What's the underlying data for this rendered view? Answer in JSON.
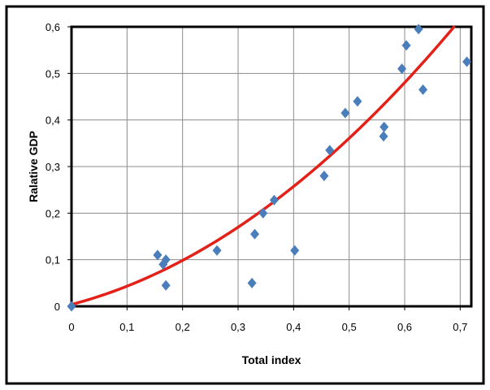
{
  "chart_data": {
    "type": "scatter",
    "xlabel": "Total index",
    "ylabel": "Ralative GDP",
    "xlim": [
      0,
      0.72
    ],
    "ylim": [
      0,
      0.6
    ],
    "x_ticks": [
      0,
      0.1,
      0.2,
      0.3,
      0.4,
      0.5,
      0.6,
      0.7
    ],
    "y_ticks": [
      0,
      0.1,
      0.2,
      0.3,
      0.4,
      0.5,
      0.6
    ],
    "x_tick_labels": [
      "0",
      "0,1",
      "0,2",
      "0,3",
      "0,4",
      "0,5",
      "0,6",
      "0,7"
    ],
    "y_tick_labels": [
      "0",
      "0,1",
      "0,2",
      "0,3",
      "0,4",
      "0,5",
      "0,6"
    ],
    "grid": true,
    "series": [
      {
        "marker": "diamond",
        "color": "#4a7ebb",
        "points": [
          [
            0.0,
            0.0
          ],
          [
            0.155,
            0.11
          ],
          [
            0.165,
            0.09
          ],
          [
            0.17,
            0.1
          ],
          [
            0.17,
            0.045
          ],
          [
            0.262,
            0.12
          ],
          [
            0.325,
            0.05
          ],
          [
            0.33,
            0.155
          ],
          [
            0.345,
            0.2
          ],
          [
            0.365,
            0.228
          ],
          [
            0.402,
            0.12
          ],
          [
            0.455,
            0.28
          ],
          [
            0.465,
            0.335
          ],
          [
            0.493,
            0.415
          ],
          [
            0.515,
            0.44
          ],
          [
            0.562,
            0.365
          ],
          [
            0.563,
            0.385
          ],
          [
            0.595,
            0.51
          ],
          [
            0.603,
            0.56
          ],
          [
            0.625,
            0.595
          ],
          [
            0.633,
            0.465
          ],
          [
            0.712,
            0.525
          ]
        ]
      }
    ],
    "trendline": {
      "type": "polynomial",
      "color": "#e32119",
      "x_range": [
        0,
        0.69
      ],
      "coefficients": [
        0.004,
        0.312,
        0.803
      ]
    }
  }
}
